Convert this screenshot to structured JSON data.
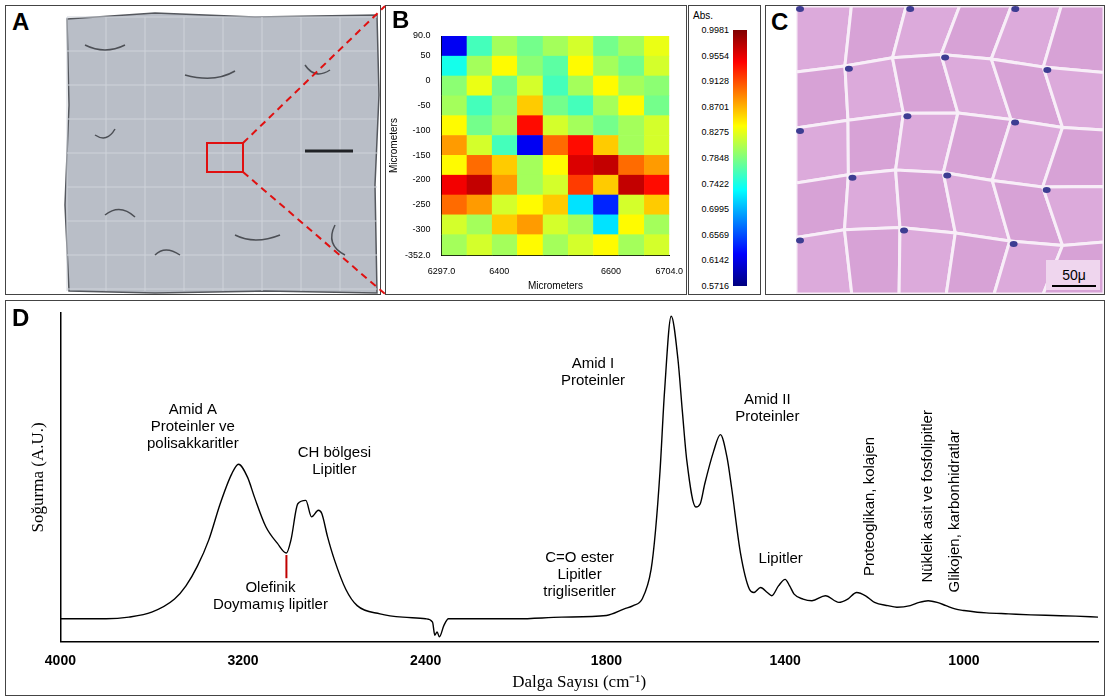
{
  "chart_data": [
    {
      "panel": "B",
      "type": "heatmap",
      "xlabel": "Micrometers",
      "ylabel": "Micrometers",
      "xlim": [
        6297,
        6704
      ],
      "ylim": [
        -352,
        90
      ],
      "xticks": [
        {
          "value": 6297,
          "label": "6297.0"
        },
        6400,
        6600,
        {
          "value": 6704,
          "label": "6704.0"
        }
      ],
      "yticks": [
        {
          "value": 90,
          "label": "90.0"
        },
        50,
        0,
        -50,
        -100,
        -150,
        -200,
        -250,
        -300,
        {
          "value": -352,
          "label": "-352.0"
        }
      ],
      "x_edges": [
        6297,
        6342,
        6387,
        6432,
        6478,
        6523,
        6568,
        6613,
        6659,
        6704
      ],
      "y_edges": [
        90,
        50,
        10,
        -30,
        -70,
        -110,
        -150,
        -190,
        -230,
        -270,
        -310,
        -352
      ],
      "cells": [
        [
          0.62,
          0.76,
          0.8,
          0.78,
          0.8,
          0.82,
          0.78,
          0.8,
          0.83
        ],
        [
          0.74,
          0.8,
          0.84,
          0.79,
          0.77,
          0.84,
          0.8,
          0.78,
          0.82
        ],
        [
          0.79,
          0.83,
          0.78,
          0.82,
          0.76,
          0.8,
          0.84,
          0.8,
          0.79
        ],
        [
          0.8,
          0.76,
          0.79,
          0.86,
          0.78,
          0.76,
          0.8,
          0.84,
          0.78
        ],
        [
          0.84,
          0.78,
          0.8,
          0.94,
          0.82,
          0.8,
          0.78,
          0.8,
          0.82
        ],
        [
          0.88,
          0.82,
          0.76,
          0.62,
          0.9,
          0.94,
          0.86,
          0.8,
          0.82
        ],
        [
          0.84,
          0.9,
          0.86,
          0.8,
          0.84,
          0.96,
          0.97,
          0.9,
          0.88
        ],
        [
          0.95,
          0.97,
          0.88,
          0.8,
          0.82,
          0.92,
          0.86,
          0.97,
          0.94
        ],
        [
          0.9,
          0.88,
          0.82,
          0.84,
          0.86,
          0.72,
          0.64,
          0.82,
          0.86
        ],
        [
          0.82,
          0.8,
          0.86,
          0.88,
          0.82,
          0.8,
          0.72,
          0.84,
          0.8
        ],
        [
          0.8,
          0.82,
          0.8,
          0.84,
          0.8,
          0.82,
          0.84,
          0.8,
          0.82
        ]
      ],
      "colorbar": {
        "title": "Abs.",
        "range": [
          0.5716,
          0.9981
        ],
        "ticks": [
          0.9981,
          0.9554,
          0.9128,
          0.8701,
          0.8275,
          0.7848,
          0.7422,
          0.6995,
          0.6569,
          0.6142,
          0.5716
        ]
      },
      "grid": false
    },
    {
      "panel": "D",
      "type": "line",
      "xlabel": "Dalga Sayısı (cm⁻¹)",
      "ylabel": "Soğurma (A.U.)",
      "xlim": [
        4000,
        700
      ],
      "ylim": [
        0,
        1
      ],
      "xticks": [
        4000,
        3200,
        2400,
        1800,
        1400,
        1000
      ],
      "tick_labels": "x",
      "grid": false,
      "color": "#000000",
      "x": [
        4000,
        3800,
        3700,
        3600,
        3500,
        3450,
        3400,
        3350,
        3300,
        3250,
        3220,
        3180,
        3150,
        3100,
        3050,
        3010,
        2990,
        2960,
        2925,
        2900,
        2870,
        2855,
        2830,
        2800,
        2750,
        2700,
        2600,
        2500,
        2400,
        2370,
        2360,
        2350,
        2340,
        2320,
        2300,
        2200,
        2000,
        1900,
        1800,
        1760,
        1740,
        1720,
        1700,
        1690,
        1680,
        1670,
        1655,
        1640,
        1630,
        1620,
        1600,
        1590,
        1580,
        1560,
        1545,
        1530,
        1520,
        1500,
        1480,
        1470,
        1455,
        1440,
        1430,
        1415,
        1400,
        1390,
        1380,
        1360,
        1340,
        1310,
        1280,
        1260,
        1240,
        1220,
        1200,
        1170,
        1150,
        1120,
        1100,
        1080,
        1060,
        1040,
        1020,
        1000,
        970,
        950,
        900,
        850,
        800,
        750,
        700
      ],
      "values": [
        0.07,
        0.07,
        0.075,
        0.09,
        0.13,
        0.17,
        0.23,
        0.31,
        0.42,
        0.51,
        0.54,
        0.5,
        0.44,
        0.35,
        0.3,
        0.27,
        0.31,
        0.42,
        0.43,
        0.38,
        0.4,
        0.39,
        0.32,
        0.25,
        0.16,
        0.11,
        0.085,
        0.075,
        0.07,
        0.06,
        0.02,
        0.03,
        0.015,
        0.05,
        0.07,
        0.07,
        0.07,
        0.075,
        0.08,
        0.1,
        0.11,
        0.13,
        0.22,
        0.34,
        0.52,
        0.76,
        0.99,
        0.86,
        0.7,
        0.55,
        0.41,
        0.42,
        0.48,
        0.58,
        0.63,
        0.56,
        0.47,
        0.27,
        0.16,
        0.15,
        0.165,
        0.15,
        0.14,
        0.17,
        0.19,
        0.17,
        0.145,
        0.13,
        0.125,
        0.14,
        0.12,
        0.13,
        0.15,
        0.14,
        0.12,
        0.11,
        0.105,
        0.11,
        0.12,
        0.125,
        0.12,
        0.11,
        0.1,
        0.095,
        0.09,
        0.088,
        0.085,
        0.082,
        0.08,
        0.078,
        0.075
      ],
      "annotations": [
        {
          "text": [
            "Amid A",
            "Proteinler ve",
            "polisakkaritler"
          ],
          "x": 3420,
          "y": 0.58
        },
        {
          "text": [
            "CH bölgesi",
            "Lipitler"
          ],
          "x": 2800,
          "y": 0.5
        },
        {
          "text": [
            "Olefinik",
            "Doymamış lipitler"
          ],
          "x": 3080,
          "y": 0.09,
          "points_to": {
            "x": 3010,
            "y": 0.27
          }
        },
        {
          "text": [
            "C=O ester",
            "Lipitler",
            "trigliseritler"
          ],
          "x": 1860,
          "y": 0.13
        },
        {
          "text": [
            "Amid I",
            "Proteinler"
          ],
          "x": 1830,
          "y": 0.77
        },
        {
          "text": [
            "Amid II",
            "Proteinler"
          ],
          "x": 1440,
          "y": 0.66
        },
        {
          "text": [
            "Lipitler"
          ],
          "x": 1410,
          "y": 0.23
        },
        {
          "text": [
            "Proteoglikan, kolajen"
          ],
          "x": 1210,
          "y": 0.2,
          "vertical": true
        },
        {
          "text": [
            "Nükleik asit ve fosfolipitler"
          ],
          "x": 1080,
          "y": 0.18,
          "vertical": true
        },
        {
          "text": [
            "Glikojen, karbonhidratlar"
          ],
          "x": 1020,
          "y": 0.15,
          "vertical": true
        }
      ]
    }
  ],
  "images": [
    {
      "panel": "A"
    },
    {
      "panel": "C",
      "scale_bar_label": "50μ"
    }
  ]
}
